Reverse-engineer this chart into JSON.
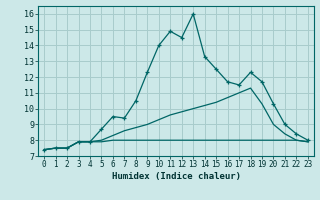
{
  "xlabel": "Humidex (Indice chaleur)",
  "ylabel": "",
  "background_color": "#cce8e8",
  "grid_color": "#a8cccc",
  "line_color": "#006666",
  "xlim": [
    -0.5,
    23.5
  ],
  "ylim": [
    7,
    16.5
  ],
  "xticks": [
    0,
    1,
    2,
    3,
    4,
    5,
    6,
    7,
    8,
    9,
    10,
    11,
    12,
    13,
    14,
    15,
    16,
    17,
    18,
    19,
    20,
    21,
    22,
    23
  ],
  "yticks": [
    7,
    8,
    9,
    10,
    11,
    12,
    13,
    14,
    15,
    16
  ],
  "line1_x": [
    0,
    1,
    2,
    3,
    4,
    5,
    6,
    7,
    8,
    9,
    10,
    11,
    12,
    13,
    14,
    15,
    16,
    17,
    18,
    19,
    20,
    21,
    22,
    23
  ],
  "line1_y": [
    7.4,
    7.5,
    7.5,
    7.9,
    7.9,
    8.7,
    9.5,
    9.4,
    10.5,
    12.3,
    14.0,
    14.9,
    14.5,
    16.0,
    13.3,
    12.5,
    11.7,
    11.5,
    12.3,
    11.7,
    10.3,
    9.0,
    8.4,
    8.0
  ],
  "line2_x": [
    0,
    1,
    2,
    3,
    4,
    5,
    6,
    7,
    8,
    9,
    10,
    11,
    12,
    13,
    14,
    15,
    16,
    17,
    18,
    19,
    20,
    21,
    22,
    23
  ],
  "line2_y": [
    7.4,
    7.5,
    7.5,
    7.9,
    7.9,
    8.0,
    8.3,
    8.6,
    8.8,
    9.0,
    9.3,
    9.6,
    9.8,
    10.0,
    10.2,
    10.4,
    10.7,
    11.0,
    11.3,
    10.3,
    9.0,
    8.4,
    8.0,
    7.9
  ],
  "line3_x": [
    0,
    1,
    2,
    3,
    4,
    5,
    6,
    7,
    8,
    9,
    10,
    11,
    12,
    13,
    14,
    15,
    16,
    17,
    18,
    19,
    20,
    21,
    22,
    23
  ],
  "line3_y": [
    7.4,
    7.5,
    7.5,
    7.9,
    7.9,
    7.9,
    8.0,
    8.0,
    8.0,
    8.0,
    8.0,
    8.0,
    8.0,
    8.0,
    8.0,
    8.0,
    8.0,
    8.0,
    8.0,
    8.0,
    8.0,
    8.0,
    8.0,
    7.9
  ],
  "xlabel_fontsize": 6.5,
  "tick_fontsize": 5.5
}
